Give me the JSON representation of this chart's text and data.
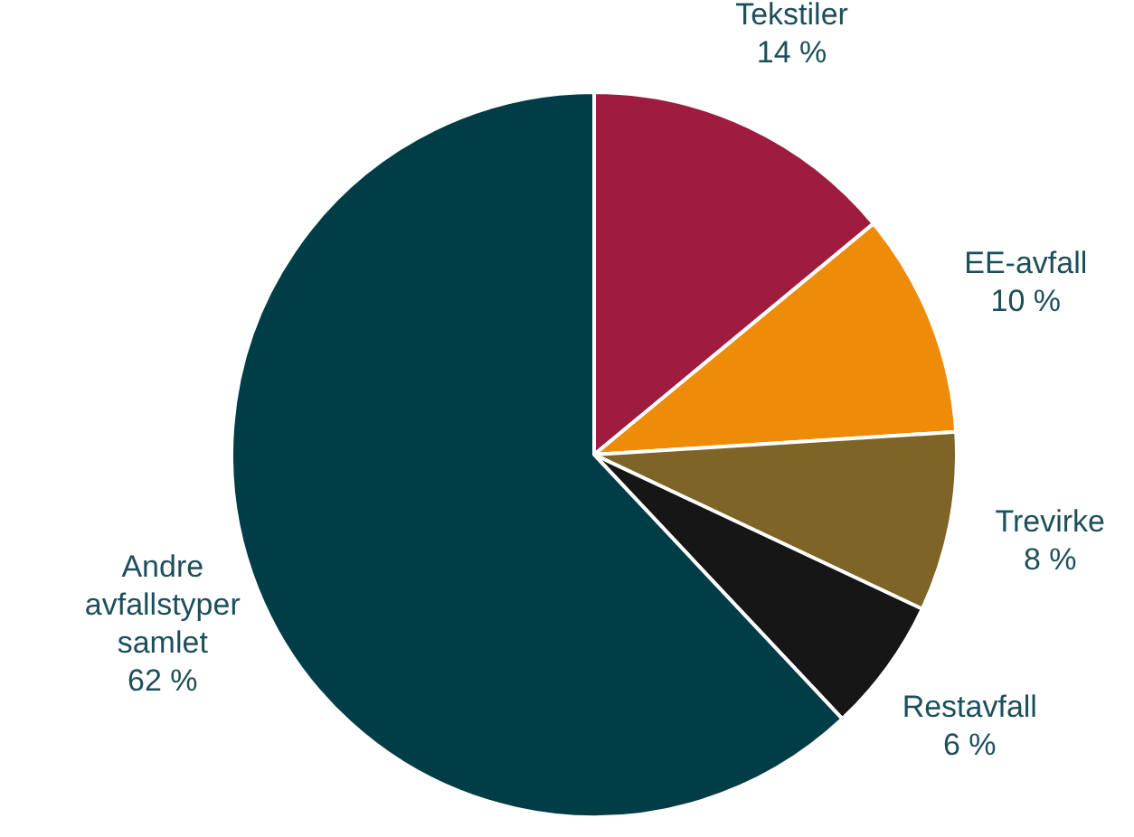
{
  "chart_data": {
    "type": "pie",
    "categories": [
      "Tekstiler",
      "EE-avfall",
      "Trevirke",
      "Restavfall",
      "Andre avfallstyper samlet"
    ],
    "values": [
      14,
      10,
      8,
      6,
      62
    ],
    "value_labels": [
      "14 %",
      "10 %",
      "8 %",
      "6 %",
      "62 %"
    ],
    "colors": [
      "#9e1c40",
      "#ee8c0a",
      "#7f6428",
      "#161616",
      "#003d47"
    ],
    "legend": false
  }
}
